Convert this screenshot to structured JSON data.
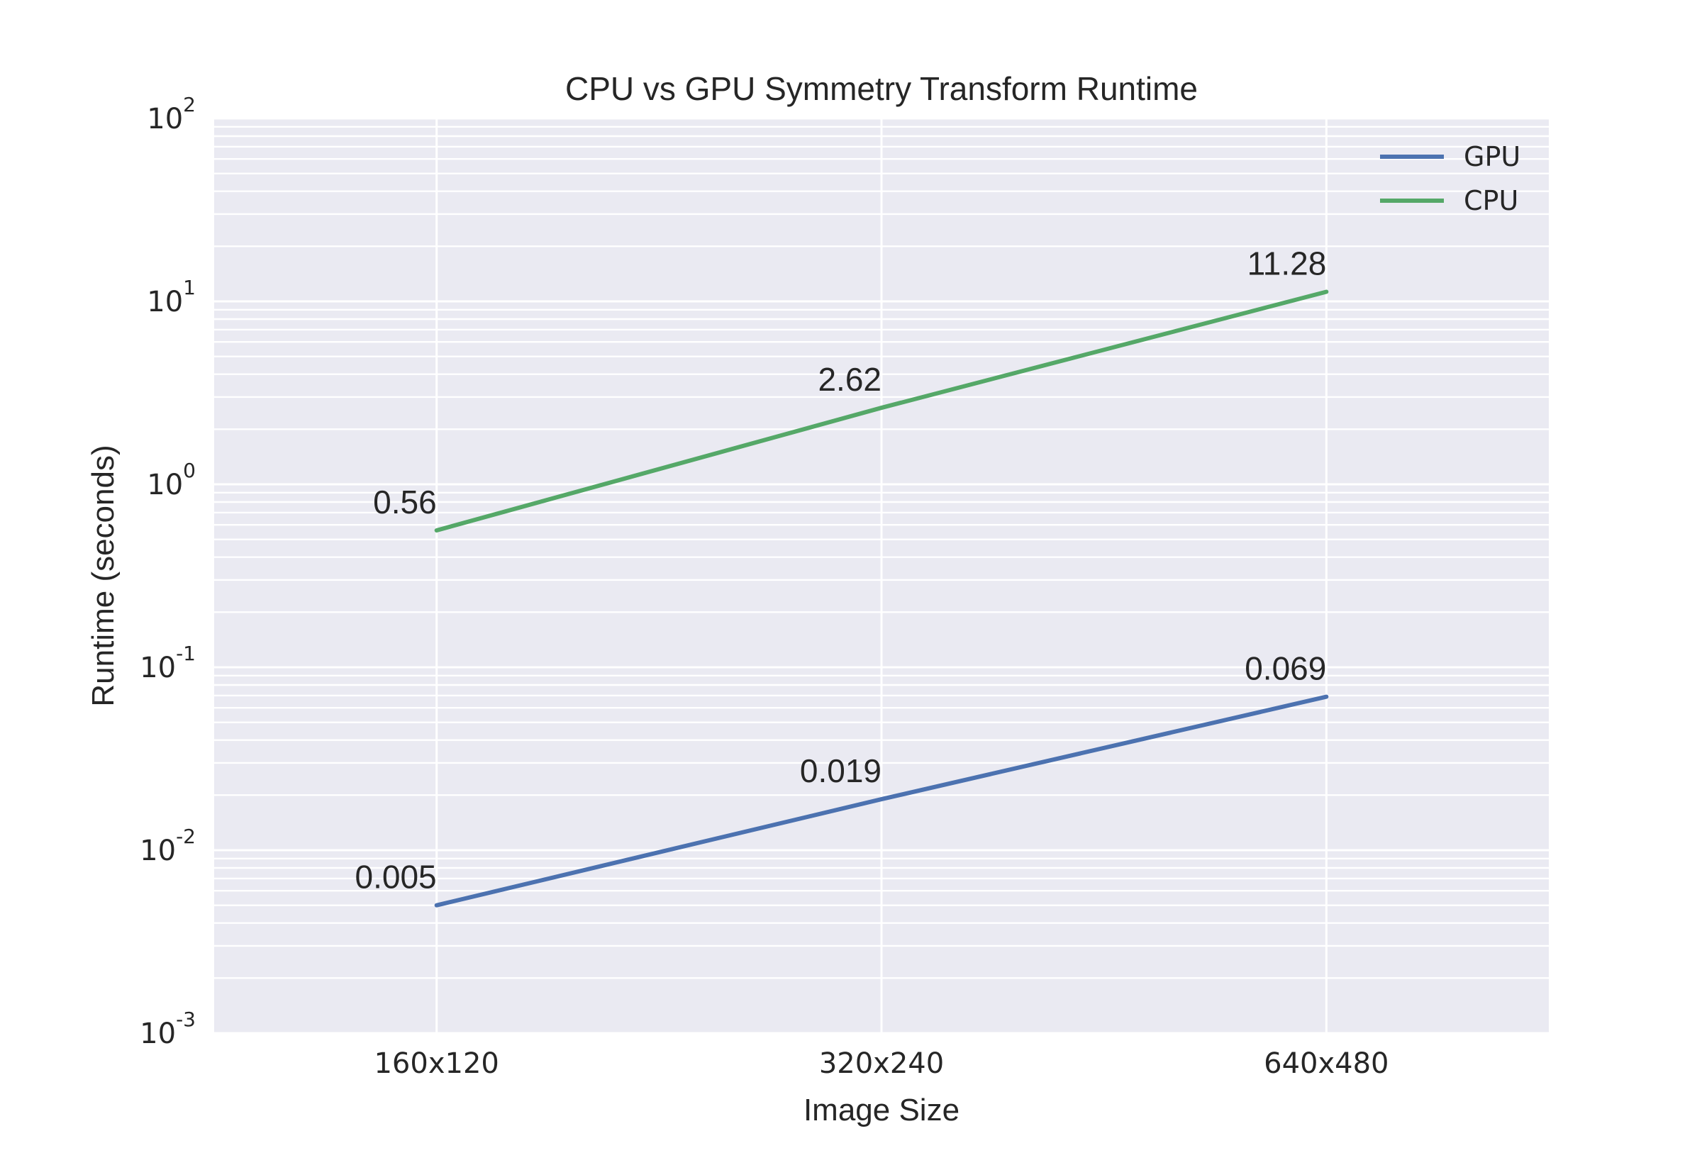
{
  "chart_data": {
    "type": "line",
    "title": "CPU vs GPU Symmetry Transform Runtime",
    "xlabel": "Image Size",
    "ylabel": "Runtime (seconds)",
    "categories": [
      "160x120",
      "320x240",
      "640x480"
    ],
    "yscale": "log",
    "ylim": [
      0.001,
      100
    ],
    "yticks": [
      {
        "value": 0.001,
        "base": "10",
        "exp": "-3"
      },
      {
        "value": 0.01,
        "base": "10",
        "exp": "-2"
      },
      {
        "value": 0.1,
        "base": "10",
        "exp": "-1"
      },
      {
        "value": 1,
        "base": "10",
        "exp": "0"
      },
      {
        "value": 10,
        "base": "10",
        "exp": "1"
      },
      {
        "value": 100,
        "base": "10",
        "exp": "2"
      }
    ],
    "grid": true,
    "legend_position": "top-right",
    "series": [
      {
        "name": "GPU",
        "color": "#4c72b0",
        "values": [
          0.005,
          0.019,
          0.069
        ],
        "labels": [
          "0.005",
          "0.019",
          "0.069"
        ]
      },
      {
        "name": "CPU",
        "color": "#55a868",
        "values": [
          0.56,
          2.62,
          11.28
        ],
        "labels": [
          "0.56",
          "2.62",
          "11.28"
        ]
      }
    ],
    "colors": {
      "plot_background": "#eaeaf2",
      "grid": "#ffffff",
      "text": "#262626"
    }
  }
}
